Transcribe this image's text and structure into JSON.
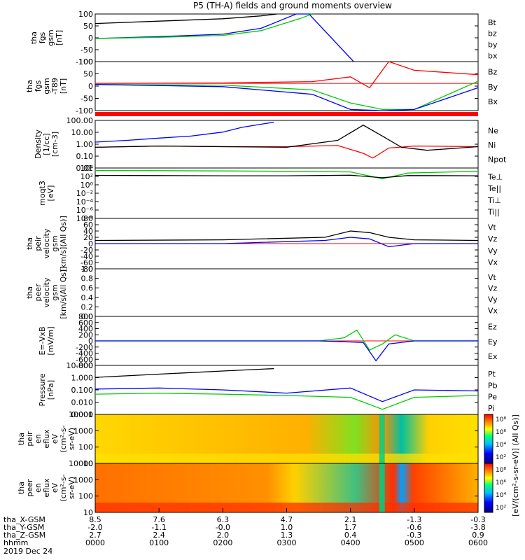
{
  "title": "P5 (TH-A) fields and ground moments overview",
  "colors": {
    "black": "#000000",
    "red": "#ff0000",
    "green": "#00cc00",
    "blue": "#0000ff"
  },
  "panels": [
    {
      "id": "fgs",
      "ylabel": [
        "tha",
        "fgs",
        "gsm",
        "[nT]"
      ],
      "ticks": [
        "100",
        "50",
        "0",
        "-50",
        "-100"
      ],
      "ylim": [
        -100,
        100
      ],
      "legend": [
        {
          "text": "Bt",
          "color": "#000000"
        },
        {
          "text": "bz",
          "color": "#ff0000"
        },
        {
          "text": "by",
          "color": "#00cc00"
        },
        {
          "text": "bx",
          "color": "#0000ff"
        }
      ]
    },
    {
      "id": "fgs_dip",
      "ylabel": [
        "tha",
        "fgs",
        "gsm",
        "-T89",
        "[nT]"
      ],
      "ticks": [
        "100",
        "50",
        "0",
        "-50",
        "-100"
      ],
      "ylim": [
        -125,
        100
      ],
      "legend": [
        {
          "text": "Bz",
          "color": "#ff0000"
        },
        {
          "text": "By",
          "color": "#00cc00"
        },
        {
          "text": "Bx",
          "color": "#0000ff"
        }
      ]
    },
    {
      "id": "density",
      "ylabel": [
        "Density",
        "[1/cc]",
        "[cm-3]"
      ],
      "ticks": [
        "100.00",
        "10.00",
        "1.00",
        "0.10",
        "0.01"
      ],
      "ylim": [
        0.005,
        300
      ],
      "log": true,
      "legend": [
        {
          "text": "Ne",
          "color": "#ff0000"
        },
        {
          "text": "Ni",
          "color": "#000000"
        },
        {
          "text": "Npot",
          "color": "#0000ff"
        }
      ]
    },
    {
      "id": "temp",
      "ylabel": [
        "moqt3",
        "[eV]"
      ],
      "ticks": [
        "10⁴",
        "10²",
        "10⁰",
        "10⁻²",
        "10⁻⁴",
        "10⁻⁶",
        "10⁻⁸"
      ],
      "ylim": [
        1e-09,
        100000.0
      ],
      "log": true,
      "legend": [
        {
          "text": "Te⊥",
          "color": "#ff0000"
        },
        {
          "text": "Te||",
          "color": "#000000"
        },
        {
          "text": "Ti⊥",
          "color": "#00cc00"
        },
        {
          "text": "Ti||",
          "color": "#00cc00"
        }
      ]
    },
    {
      "id": "vi",
      "ylabel": [
        "tha",
        "peir",
        "velocity",
        "gsm",
        "[km/s](All Qs)]"
      ],
      "ticks": [
        "80",
        "60",
        "40",
        "20",
        "0",
        "-20",
        "-40",
        "-60",
        "-80"
      ],
      "ylim": [
        -80,
        80
      ],
      "legend": [
        {
          "text": "Vt",
          "color": "#000000"
        },
        {
          "text": "Vz",
          "color": "#ff0000"
        },
        {
          "text": "Vy",
          "color": "#00cc00"
        },
        {
          "text": "Vx",
          "color": "#0000ff"
        }
      ]
    },
    {
      "id": "ve",
      "ylabel": [
        "tha",
        "peer",
        "velocity",
        "gsm",
        "[km/s(All Qs)]"
      ],
      "ticks": [
        "1.0",
        "0.8",
        "0.6",
        "0.4",
        "0.2",
        "0.0"
      ],
      "ylim": [
        0,
        1
      ],
      "legend": [
        {
          "text": "Vt",
          "color": "#000000"
        },
        {
          "text": "Vz",
          "color": "#ff0000"
        },
        {
          "text": "Vy",
          "color": "#00cc00"
        },
        {
          "text": "Vx",
          "color": "#0000ff"
        }
      ]
    },
    {
      "id": "efield",
      "ylabel": [
        "E=-VxB",
        "[mV/m]"
      ],
      "ticks": [
        "800",
        "600",
        "400",
        "200",
        "0",
        "-200",
        "-400",
        "-600",
        "-800"
      ],
      "ylim": [
        -800,
        800
      ],
      "legend": [
        {
          "text": "Ez",
          "color": "#ff0000"
        },
        {
          "text": "Ey",
          "color": "#00cc00"
        },
        {
          "text": "Ex",
          "color": "#0000ff"
        }
      ]
    },
    {
      "id": "pressure",
      "ylabel": [
        "Pressure",
        "[nPa]"
      ],
      "ticks": [
        "10.000",
        "1.000",
        "0.100",
        "0.010",
        "0.001"
      ],
      "ylim": [
        0.0005,
        20
      ],
      "log": true,
      "legend": [
        {
          "text": "Pt",
          "color": "#000000"
        },
        {
          "text": "Pb",
          "color": "#ff0000"
        },
        {
          "text": "Pe",
          "color": "#00cc00"
        },
        {
          "text": "Pi",
          "color": "#0000ff"
        }
      ]
    },
    {
      "id": "ion_spec",
      "ylabel": [
        "tha",
        "peir",
        "en",
        "eflux",
        "eV",
        "(cm²-s-",
        "sr-eV)"
      ],
      "ticks": [
        "10000",
        "1000",
        "100",
        "10"
      ],
      "ylim": [
        5,
        25000
      ],
      "log": true
    },
    {
      "id": "ele_spec",
      "ylabel": [
        "tha",
        "peer",
        "en",
        "eflux",
        "eV",
        "(cm²-s-",
        "sr-eV)"
      ],
      "ticks": [
        "10000",
        "1000",
        "100",
        "10"
      ],
      "ylim": [
        5,
        25000
      ],
      "log": true
    }
  ],
  "colorbar": {
    "ticks": [
      "10⁸",
      "10⁶",
      "10⁴",
      "10²",
      "10⁸",
      "10⁶",
      "10⁴",
      "10²"
    ],
    "label": "[eV/(cm²-s-sr-eV)] (All Qs)]"
  },
  "xaxis": {
    "rows": [
      {
        "label": "tha_X-GSM",
        "values": [
          "8.5",
          "7.6",
          "6.3",
          "4.7",
          "2.1",
          "-1.3",
          "-0.3"
        ]
      },
      {
        "label": "tha_Y-GSM",
        "values": [
          "-2.0",
          "-1.1",
          "-0.0",
          "1.0",
          "1.7",
          "-0.6",
          "-3.8"
        ]
      },
      {
        "label": "tha_Z-GSM",
        "values": [
          "2.7",
          "2.4",
          "2.0",
          "1.3",
          "0.4",
          "-0.3",
          "0.9"
        ]
      },
      {
        "label": "hhmm",
        "values": [
          "0000",
          "0100",
          "0200",
          "0300",
          "0400",
          "0500",
          "0600"
        ]
      }
    ],
    "date": "2019 Dec 24",
    "xlim": [
      0,
      6
    ]
  },
  "chart_data": {
    "type": "line",
    "title": "P5 (TH-A) fields and ground moments overview",
    "x_unit": "hours UT, 2019 Dec 24",
    "xlim": [
      0,
      6
    ],
    "series": [
      {
        "name": "Bt",
        "panel": "fgs",
        "x": [
          0,
          1,
          2,
          2.6,
          2.85
        ],
        "y": [
          60,
          70,
          80,
          92,
          100
        ]
      },
      {
        "name": "bx",
        "panel": "fgs",
        "x": [
          0,
          1,
          2,
          2.6,
          3.15,
          3.35,
          4.05
        ],
        "y": [
          -3,
          5,
          15,
          40,
          100,
          100,
          -100
        ]
      },
      {
        "name": "by",
        "panel": "fgs",
        "x": [
          0,
          1,
          2,
          2.6,
          3.2,
          3.4
        ],
        "y": [
          -3,
          2,
          10,
          30,
          80,
          100
        ]
      },
      {
        "name": "Bz",
        "panel": "fgs_dip",
        "x": [
          0,
          2,
          3.4,
          4.0,
          4.3,
          4.6,
          5.0,
          6.0
        ],
        "y": [
          0,
          2,
          8,
          30,
          -20,
          100,
          60,
          40
        ]
      },
      {
        "name": "By",
        "panel": "fgs_dip",
        "x": [
          0,
          2,
          3.4,
          4.0,
          4.5,
          5.0,
          6.0
        ],
        "y": [
          -5,
          -8,
          -30,
          -90,
          -120,
          -120,
          10
        ]
      },
      {
        "name": "Bx",
        "panel": "fgs_dip",
        "x": [
          0,
          2,
          3.4,
          4.0,
          4.5,
          5.0,
          6.0
        ],
        "y": [
          -5,
          -15,
          -50,
          -120,
          -125,
          -120,
          -20
        ]
      },
      {
        "name": "Ne",
        "panel": "density",
        "x": [
          0,
          1,
          2,
          3,
          3.8,
          4.2,
          4.35,
          4.6,
          5,
          6
        ],
        "y": [
          0.6,
          0.8,
          0.7,
          0.7,
          0.9,
          0.15,
          0.05,
          0.5,
          0.8,
          0.7
        ]
      },
      {
        "name": "Ni",
        "panel": "density",
        "x": [
          0,
          1,
          2,
          3,
          3.8,
          4.2,
          4.5,
          4.8,
          5.2,
          6
        ],
        "y": [
          0.6,
          0.8,
          0.7,
          0.6,
          3,
          100,
          8,
          0.6,
          0.3,
          0.7
        ]
      },
      {
        "name": "Npot",
        "panel": "density",
        "x": [
          0,
          0.5,
          1,
          1.5,
          2,
          2.3,
          2.8
        ],
        "y": [
          2,
          3,
          5,
          8,
          20,
          60,
          200
        ]
      },
      {
        "name": "Ti||",
        "panel": "temp",
        "x": [
          0,
          1,
          2,
          3,
          4,
          4.5,
          4.9,
          6
        ],
        "y": [
          20000,
          18000,
          15000,
          12000,
          8000,
          100,
          4000,
          12000
        ]
      },
      {
        "name": "Te||",
        "panel": "temp",
        "x": [
          0,
          1,
          2,
          3,
          4,
          4.5,
          4.9,
          6
        ],
        "y": [
          900,
          800,
          700,
          700,
          1000,
          200,
          800,
          700
        ]
      },
      {
        "name": "Vx",
        "panel": "vi",
        "x": [
          0,
          2,
          3.6,
          4.0,
          4.3,
          4.6,
          5,
          6
        ],
        "y": [
          0,
          0,
          10,
          20,
          15,
          -10,
          0,
          0
        ]
      },
      {
        "name": "Vt",
        "panel": "vi",
        "x": [
          0,
          2,
          3.6,
          4.0,
          4.3,
          4.6,
          5,
          6
        ],
        "y": [
          10,
          12,
          20,
          40,
          35,
          20,
          12,
          10
        ]
      },
      {
        "name": "Ey",
        "panel": "efield",
        "x": [
          0,
          3.5,
          3.9,
          4.1,
          4.3,
          4.5,
          4.7,
          5.0,
          6
        ],
        "y": [
          0,
          0,
          100,
          350,
          -300,
          -100,
          200,
          0,
          0
        ]
      },
      {
        "name": "Ex",
        "panel": "efield",
        "x": [
          0,
          3.5,
          4.2,
          4.4,
          4.6,
          5,
          6
        ],
        "y": [
          0,
          0,
          -50,
          -650,
          -100,
          0,
          0
        ]
      },
      {
        "name": "Pt",
        "panel": "pressure",
        "x": [
          0,
          1,
          2,
          2.8
        ],
        "y": [
          1.5,
          3,
          6,
          10
        ]
      },
      {
        "name": "Pi",
        "panel": "pressure",
        "x": [
          0,
          1,
          2,
          3,
          4,
          4.5,
          5,
          6
        ],
        "y": [
          0.12,
          0.15,
          0.1,
          0.05,
          0.15,
          0.008,
          0.1,
          0.08
        ]
      },
      {
        "name": "Pe",
        "panel": "pressure",
        "x": [
          0,
          1,
          2,
          3,
          4,
          4.5,
          5,
          6
        ],
        "y": [
          0.04,
          0.05,
          0.04,
          0.03,
          0.02,
          0.0015,
          0.02,
          0.03
        ]
      }
    ]
  }
}
